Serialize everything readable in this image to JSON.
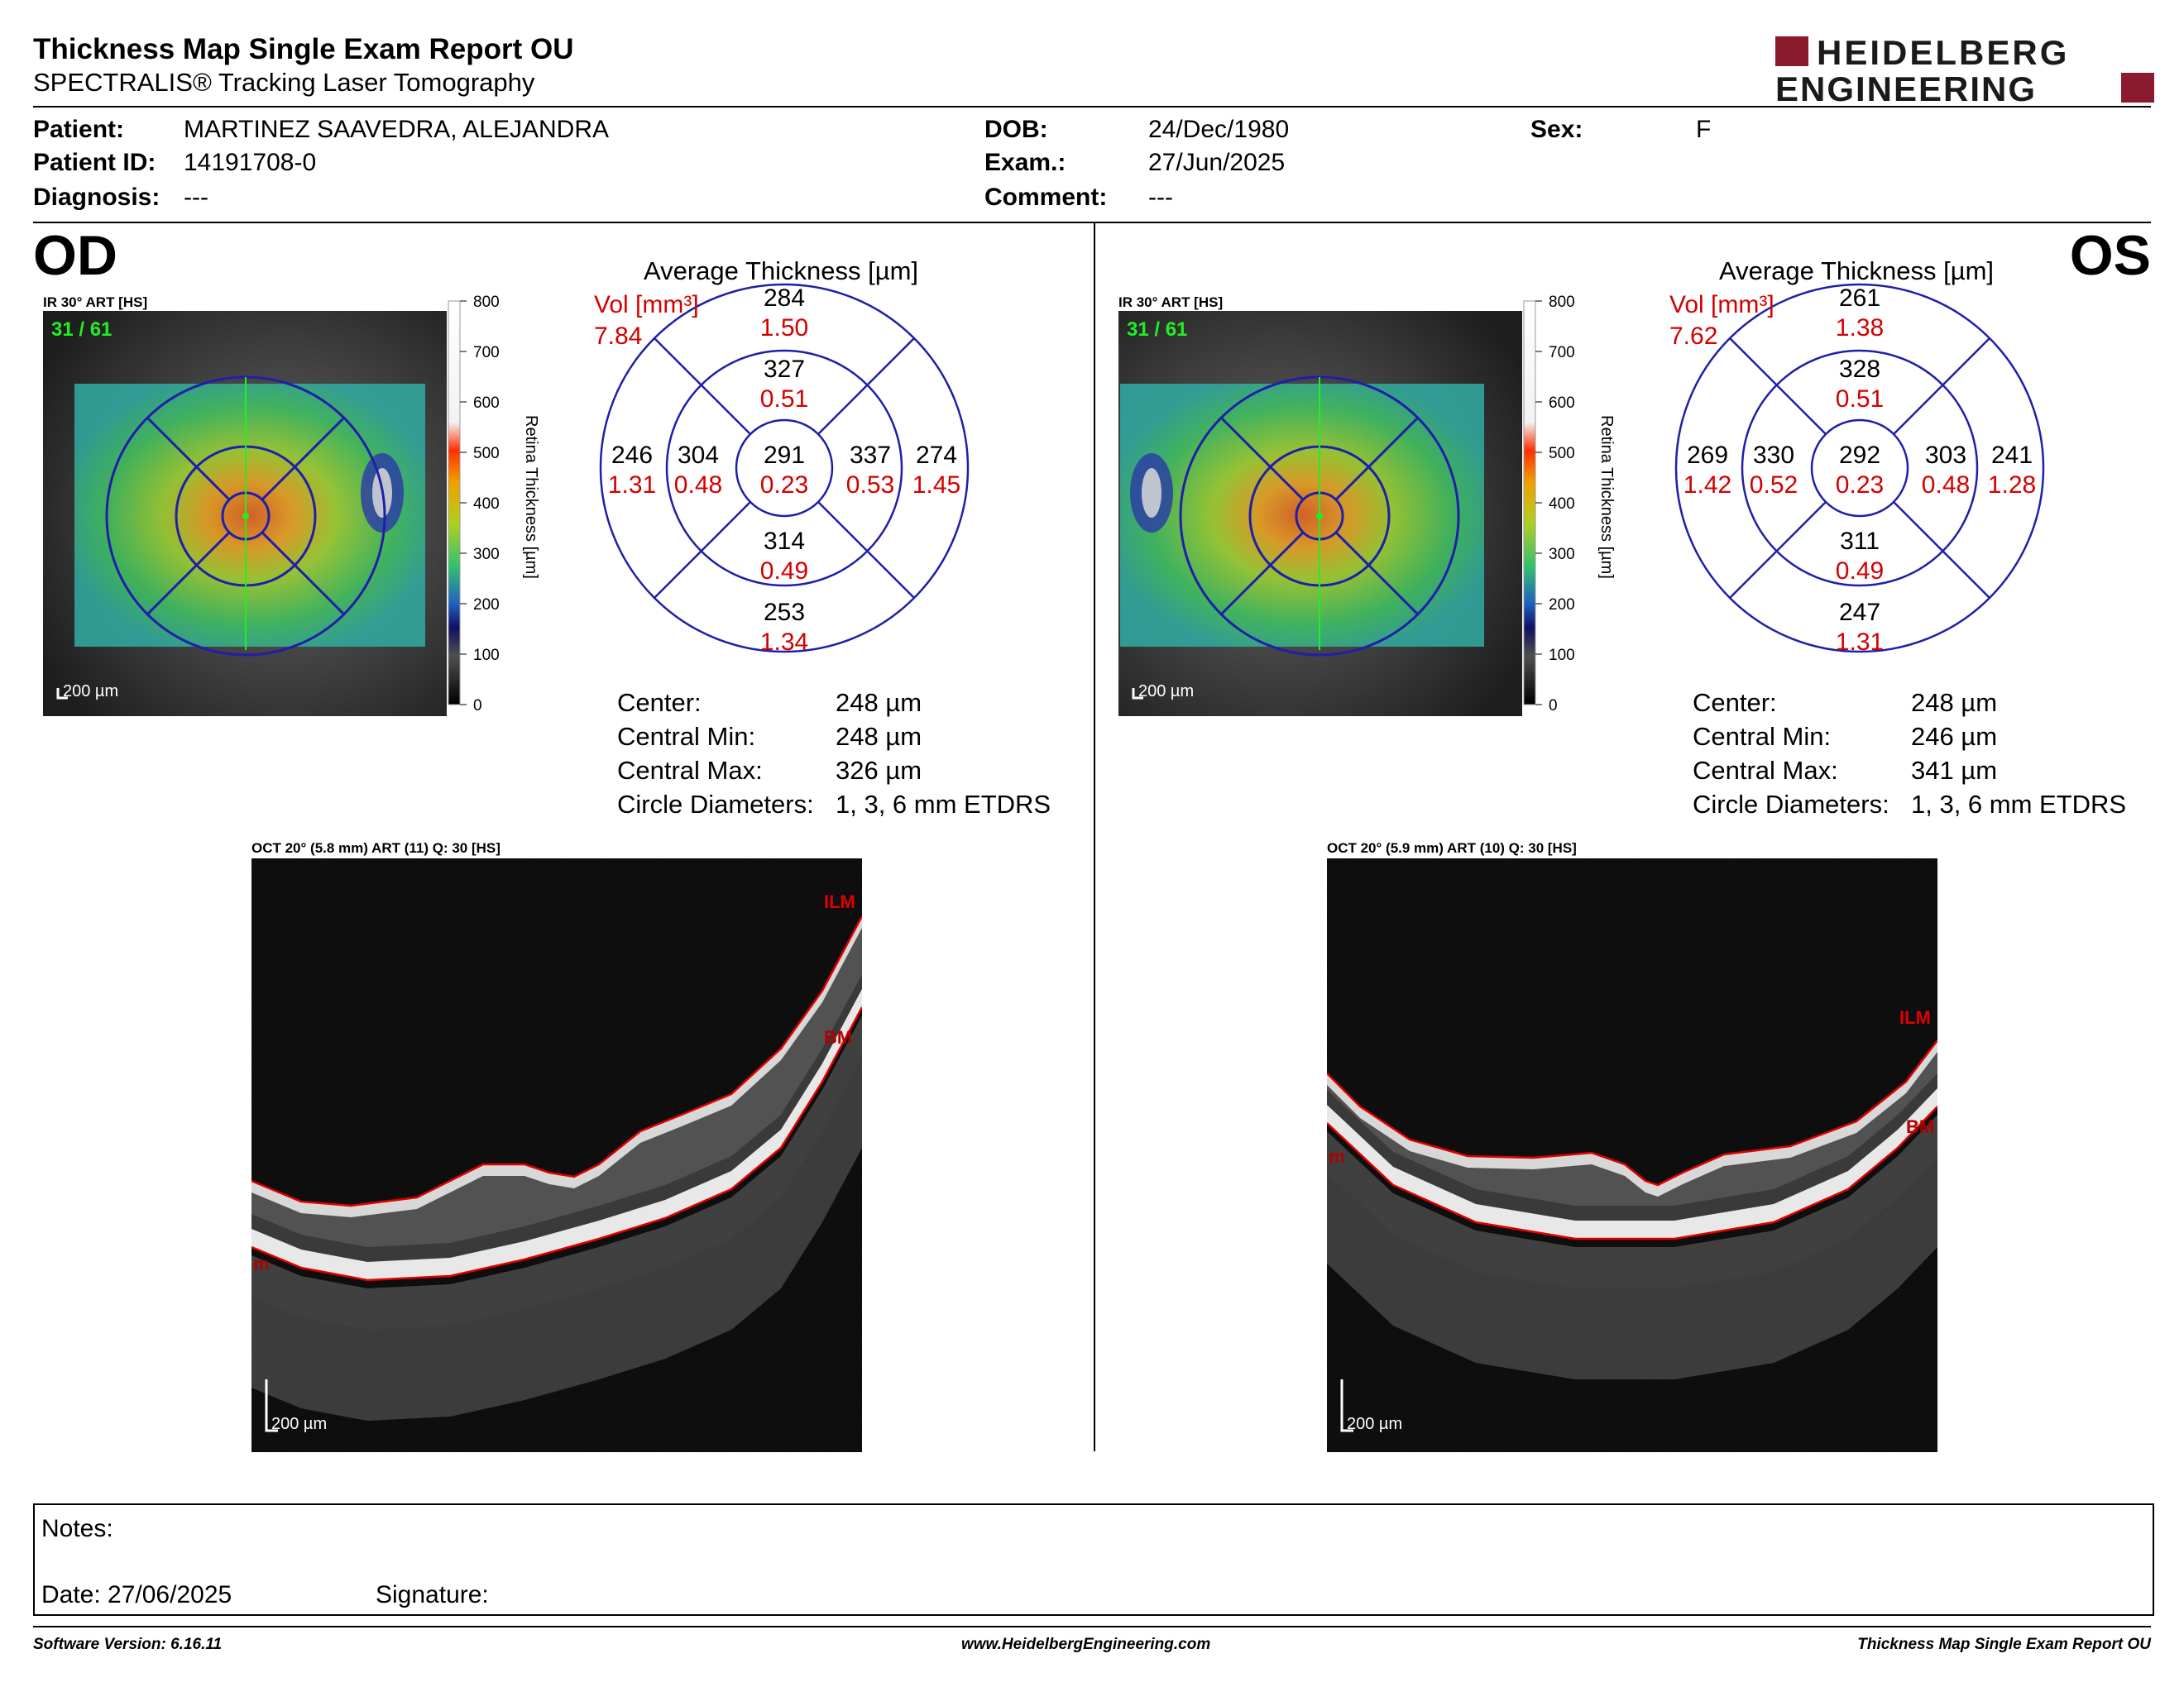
{
  "report": {
    "title": "Thickness Map Single Exam Report OU",
    "subtitle": "SPECTRALIS® Tracking Laser Tomography",
    "logo_line1": "HEIDELBERG",
    "logo_line2": "ENGINEERING"
  },
  "patient": {
    "patient_label": "Patient:",
    "patient_value": "MARTINEZ SAAVEDRA, ALEJANDRA",
    "id_label": "Patient ID:",
    "id_value": "14191708-0",
    "diagnosis_label": "Diagnosis:",
    "diagnosis_value": "---",
    "dob_label": "DOB:",
    "dob_value": "24/Dec/1980",
    "exam_label": "Exam.:",
    "exam_value": "27/Jun/2025",
    "comment_label": "Comment:",
    "comment_value": "---",
    "sex_label": "Sex:",
    "sex_value": "F"
  },
  "colors": {
    "ring": "#1f1fa8",
    "volume_red": "#d40000",
    "oct_line_red": "#e00000",
    "fixation_green": "#22ee22",
    "logo_red": "#8c1a2e"
  },
  "scale_bar": {
    "ticks": [
      "800",
      "700",
      "600",
      "500",
      "400",
      "300",
      "200",
      "100",
      "0"
    ],
    "label": "Retina  Thickness [µm]"
  },
  "eyes": [
    {
      "label": "OD",
      "ir_title": "IR 30° ART [HS]",
      "frame": "31 / 61",
      "ir_scale": "200 µm",
      "avg_title": "Average Thickness [µm]",
      "vol_label": "Vol [mm³]",
      "vol_total": "7.84",
      "grid": {
        "center": {
          "t": "291",
          "v": "0.23"
        },
        "inner_sup": {
          "t": "327",
          "v": "0.51"
        },
        "inner_temp": {
          "t": "304",
          "v": "0.48"
        },
        "inner_nasal": {
          "t": "337",
          "v": "0.53"
        },
        "inner_inf": {
          "t": "314",
          "v": "0.49"
        },
        "outer_sup": {
          "t": "284",
          "v": "1.50"
        },
        "outer_temp": {
          "t": "246",
          "v": "1.31"
        },
        "outer_nasal": {
          "t": "274",
          "v": "1.45"
        },
        "outer_inf": {
          "t": "253",
          "v": "1.34"
        }
      },
      "stats": {
        "center_label": "Center:",
        "center_value": "248 µm",
        "min_label": "Central Min:",
        "min_value": "248 µm",
        "max_label": "Central Max:",
        "max_value": "326 µm",
        "diam_label": "Circle Diameters:",
        "diam_value": "1, 3, 6 mm ETDRS"
      },
      "oct_title": "OCT 20° (5.8 mm) ART (11) Q: 30 [HS]",
      "oct_ilm": "ILM",
      "oct_bm": "BM",
      "oct_bm_left": "m",
      "oct_scale": "200 µm"
    },
    {
      "label": "OS",
      "ir_title": "IR 30° ART [HS]",
      "frame": "31 / 61",
      "ir_scale": "200 µm",
      "avg_title": "Average Thickness [µm]",
      "vol_label": "Vol [mm³]",
      "vol_total": "7.62",
      "grid": {
        "center": {
          "t": "292",
          "v": "0.23"
        },
        "inner_sup": {
          "t": "328",
          "v": "0.51"
        },
        "inner_temp": {
          "t": "330",
          "v": "0.52"
        },
        "inner_nasal": {
          "t": "303",
          "v": "0.48"
        },
        "inner_inf": {
          "t": "311",
          "v": "0.49"
        },
        "outer_sup": {
          "t": "261",
          "v": "1.38"
        },
        "outer_temp": {
          "t": "269",
          "v": "1.42"
        },
        "outer_nasal": {
          "t": "241",
          "v": "1.28"
        },
        "outer_inf": {
          "t": "247",
          "v": "1.31"
        }
      },
      "stats": {
        "center_label": "Center:",
        "center_value": "248 µm",
        "min_label": "Central Min:",
        "min_value": "246 µm",
        "max_label": "Central Max:",
        "max_value": "341 µm",
        "diam_label": "Circle Diameters:",
        "diam_value": "1, 3, 6 mm ETDRS"
      },
      "oct_title": "OCT 20° (5.9 mm) ART (10) Q: 30 [HS]",
      "oct_ilm": "ILM",
      "oct_bm": "BM",
      "oct_bm_left": "m",
      "oct_scale": "200 µm"
    }
  ],
  "notes": {
    "notes_label": "Notes:",
    "date_label": "Date: 27/06/2025",
    "signature_label": "Signature:"
  },
  "footer": {
    "software": "Software Version: 6.16.11",
    "website": "www.HeidelbergEngineering.com",
    "report_name": "Thickness Map Single Exam Report OU"
  }
}
